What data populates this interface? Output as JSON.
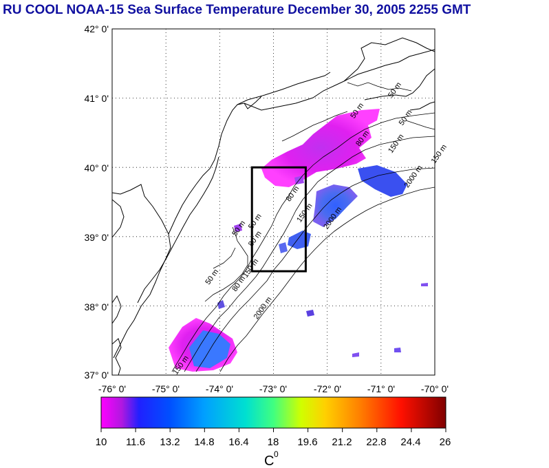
{
  "title": "RU COOL  NOAA-15 Sea Surface Temperature December 30, 2005 2255 GMT",
  "map": {
    "lon_range": [
      -76,
      -70
    ],
    "lat_range": [
      37,
      42
    ],
    "lat_labels": [
      "42° 0'",
      "41° 0'",
      "40° 0'",
      "39° 0'",
      "38° 0'",
      "37° 0'"
    ],
    "lon_labels": [
      "-76° 0'",
      "-75° 0'",
      "-74° 0'",
      "-73° 0'",
      "-72° 0'",
      "-71° 0'",
      "-70° 0'"
    ],
    "study_box": {
      "lon_min": -73.4,
      "lon_max": -72.4,
      "lat_min": 38.5,
      "lat_max": 40.0
    },
    "contour_labels": [
      {
        "text": "50 m",
        "lon": -71.5,
        "lat": 40.7
      },
      {
        "text": "50 m",
        "lon": -70.8,
        "lat": 41.0
      },
      {
        "text": "50 m",
        "lon": -70.6,
        "lat": 40.6
      },
      {
        "text": "80 m",
        "lon": -71.4,
        "lat": 40.3
      },
      {
        "text": "150 m",
        "lon": -70.8,
        "lat": 40.2
      },
      {
        "text": "150 m",
        "lon": -70.0,
        "lat": 40.05
      },
      {
        "text": "2000 m",
        "lon": -70.5,
        "lat": 39.7
      },
      {
        "text": "80 m",
        "lon": -72.7,
        "lat": 39.5
      },
      {
        "text": "150 m",
        "lon": -72.5,
        "lat": 39.2
      },
      {
        "text": "2000 m",
        "lon": -72.0,
        "lat": 39.1
      },
      {
        "text": "50 m",
        "lon": -73.7,
        "lat": 39.0
      },
      {
        "text": "50 m",
        "lon": -73.4,
        "lat": 39.1
      },
      {
        "text": "80 m",
        "lon": -73.4,
        "lat": 38.85
      },
      {
        "text": "50 m",
        "lon": -74.2,
        "lat": 38.3
      },
      {
        "text": "80 m",
        "lon": -73.7,
        "lat": 38.2
      },
      {
        "text": "150 m",
        "lon": -73.5,
        "lat": 38.4
      },
      {
        "text": "2000 m",
        "lon": -73.3,
        "lat": 37.8
      },
      {
        "text": "150 m",
        "lon": -74.8,
        "lat": 37.0
      }
    ]
  },
  "colorbar": {
    "ticks": [
      "10",
      "11.6",
      "13.2",
      "14.8",
      "16.4",
      "18",
      "19.6",
      "21.2",
      "22.8",
      "24.4",
      "26"
    ],
    "unit": "C",
    "unit_superscript": "0"
  },
  "colors": {
    "title": "#1010a0"
  }
}
